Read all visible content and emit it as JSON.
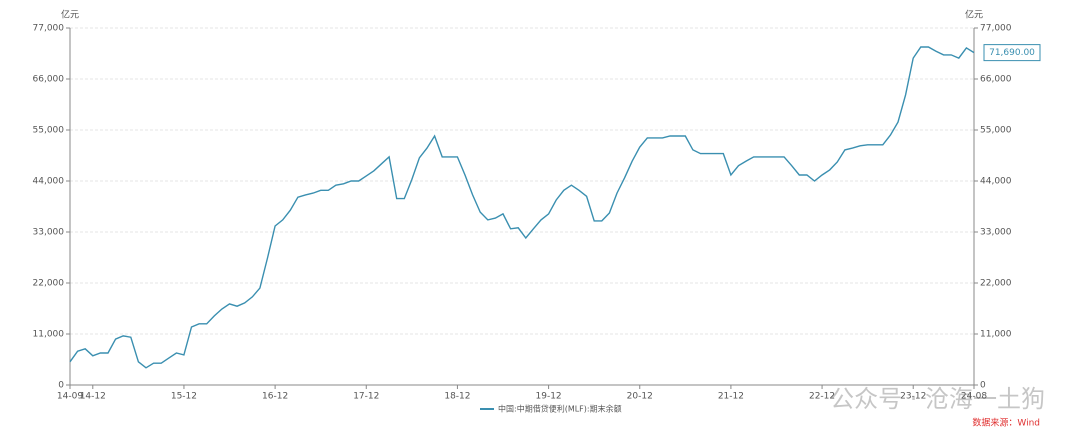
{
  "chart_data": {
    "type": "line",
    "unit_left": "亿元",
    "unit_right": "亿元",
    "categories": [
      "14-09",
      null,
      null,
      "14-12",
      null,
      null,
      null,
      null,
      null,
      null,
      null,
      null,
      null,
      null,
      null,
      "15-12",
      null,
      null,
      null,
      null,
      null,
      null,
      null,
      null,
      null,
      null,
      null,
      "16-12",
      null,
      null,
      null,
      null,
      null,
      null,
      null,
      null,
      null,
      null,
      null,
      "17-12",
      null,
      null,
      null,
      null,
      null,
      null,
      null,
      null,
      null,
      null,
      null,
      "18-12",
      null,
      null,
      null,
      null,
      null,
      null,
      null,
      null,
      null,
      null,
      null,
      "19-12",
      null,
      null,
      null,
      null,
      null,
      null,
      null,
      null,
      null,
      null,
      null,
      "20-12",
      null,
      null,
      null,
      null,
      null,
      null,
      null,
      null,
      null,
      null,
      null,
      "21-12",
      null,
      null,
      null,
      null,
      null,
      null,
      null,
      null,
      null,
      null,
      null,
      "22-12",
      null,
      null,
      null,
      null,
      null,
      null,
      null,
      null,
      null,
      null,
      null,
      "23-12",
      null,
      null,
      null,
      null,
      null,
      null,
      null,
      "24-08"
    ],
    "series": [
      {
        "name": "中国:中期借贷便利(MLF):期末余额",
        "color": "#3a8fb0",
        "values": [
          5000,
          7300,
          7800,
          6300,
          6900,
          6900,
          9900,
          10600,
          10300,
          5000,
          3700,
          4700,
          4700,
          5800,
          6900,
          6500,
          12500,
          13200,
          13200,
          14900,
          16400,
          17500,
          17000,
          17700,
          19000,
          20900,
          27400,
          34300,
          35600,
          37700,
          40500,
          41000,
          41400,
          42000,
          42000,
          43100,
          43400,
          44000,
          44000,
          45100,
          46200,
          47700,
          49200,
          40200,
          40200,
          44300,
          49000,
          51100,
          53700,
          49200,
          49200,
          49200,
          45300,
          41000,
          37300,
          35600,
          36000,
          36900,
          33700,
          33900,
          31700,
          33700,
          35600,
          36900,
          39900,
          42000,
          43100,
          42000,
          40700,
          35400,
          35400,
          37100,
          41400,
          44700,
          48300,
          51300,
          53300,
          53300,
          53300,
          53700,
          53700,
          53700,
          50700,
          49900,
          49900,
          49900,
          49900,
          45300,
          47300,
          48300,
          49200,
          49200,
          49200,
          49200,
          49200,
          47300,
          45300,
          45300,
          44000,
          45300,
          46400,
          48100,
          50700,
          51100,
          51600,
          51800,
          51800,
          51800,
          53900,
          56700,
          62600,
          70500,
          72900,
          72900,
          72000,
          71200,
          71200,
          70500,
          72700,
          71690
        ],
        "value_labels": {
          "119": "71,690.00"
        }
      }
    ],
    "ylim": [
      0,
      77000
    ],
    "yticks": [
      0,
      {
        "value": 11000,
        "label": "11,000"
      },
      {
        "value": 22000,
        "label": "22,000"
      },
      {
        "value": 33000,
        "label": "33,000"
      },
      {
        "value": 44000,
        "label": "44,000"
      },
      {
        "value": 55000,
        "label": "55,000"
      },
      {
        "value": 66000,
        "label": "66,000"
      },
      {
        "value": 77000,
        "label": "77,000"
      }
    ],
    "grid": true,
    "source": "数据来源：Wind",
    "watermark": "公众号 · 沧海一土狗"
  }
}
